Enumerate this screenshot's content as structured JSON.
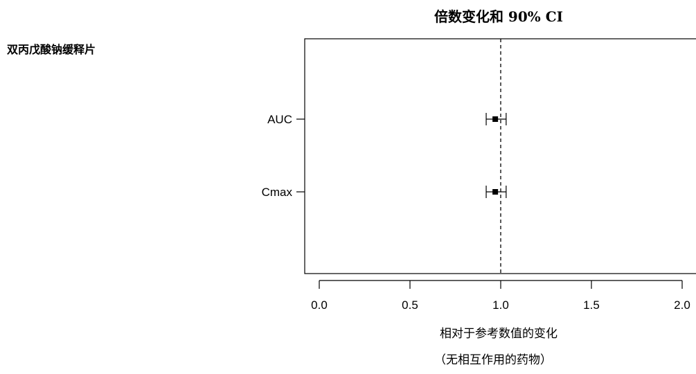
{
  "chart_data": {
    "type": "scatter",
    "title": "倍数变化和 90% CI",
    "group_label": "双丙戊酸钠缓释片",
    "categories": [
      "AUC",
      "Cmax"
    ],
    "series": [
      {
        "point": [
          0.97,
          0.97
        ],
        "ci_lower": [
          0.92,
          0.92
        ],
        "ci_upper": [
          1.03,
          1.03
        ]
      }
    ],
    "reference_line": 1.0,
    "xlim": [
      -0.07,
      2.1
    ],
    "x_ticks": [
      "0.0",
      "0.5",
      "1.0",
      "1.5",
      "2.0"
    ],
    "x_tick_values": [
      0,
      0.5,
      1.0,
      1.5,
      2.0
    ],
    "xlabel_line1": "相对于参考数值的变化",
    "xlabel_line2": "（无相互作用的药物）",
    "grid": false,
    "legend": "none"
  }
}
